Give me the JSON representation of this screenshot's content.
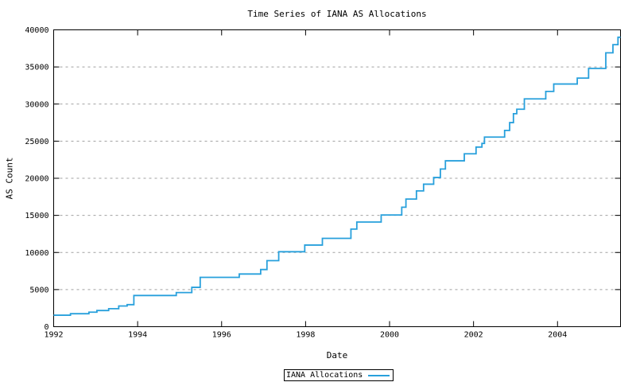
{
  "title": "Time Series of IANA AS Allocations",
  "colors": {
    "line": "#28a0dc",
    "grid": "#a0a0a0",
    "axis": "#000000",
    "background": "#ffffff",
    "text": "#000000"
  },
  "legend": {
    "label": "IANA Allocations"
  },
  "chart_data": {
    "type": "line",
    "line_style": "step-after",
    "title": "Time Series of IANA AS Allocations",
    "xlabel": "Date",
    "ylabel": "AS Count",
    "xlim": [
      1992,
      2005.5
    ],
    "ylim": [
      0,
      40000
    ],
    "x_ticks": [
      1992,
      1994,
      1996,
      1998,
      2000,
      2002,
      2004
    ],
    "y_ticks": [
      0,
      5000,
      10000,
      15000,
      20000,
      25000,
      30000,
      35000,
      40000
    ],
    "grid": "horizontal-dashed",
    "legend_position": "bottom-center",
    "series": [
      {
        "name": "IANA Allocations",
        "color": "#28a0dc",
        "points": [
          [
            1992.0,
            1550
          ],
          [
            1992.4,
            1750
          ],
          [
            1992.84,
            1960
          ],
          [
            1993.03,
            2180
          ],
          [
            1993.31,
            2430
          ],
          [
            1993.55,
            2790
          ],
          [
            1993.75,
            2970
          ],
          [
            1993.91,
            4200
          ],
          [
            1994.92,
            4600
          ],
          [
            1995.29,
            5300
          ],
          [
            1995.49,
            6650
          ],
          [
            1996.42,
            7100
          ],
          [
            1996.93,
            7700
          ],
          [
            1997.08,
            8900
          ],
          [
            1997.36,
            10100
          ],
          [
            1997.98,
            11000
          ],
          [
            1998.4,
            11900
          ],
          [
            1999.08,
            13150
          ],
          [
            1999.22,
            14100
          ],
          [
            1999.8,
            15050
          ],
          [
            2000.29,
            16100
          ],
          [
            2000.39,
            17200
          ],
          [
            2000.64,
            18300
          ],
          [
            2000.81,
            19200
          ],
          [
            2001.05,
            20100
          ],
          [
            2001.21,
            21250
          ],
          [
            2001.33,
            22350
          ],
          [
            2001.78,
            23300
          ],
          [
            2002.06,
            24200
          ],
          [
            2002.2,
            24700
          ],
          [
            2002.26,
            25550
          ],
          [
            2002.74,
            26450
          ],
          [
            2002.86,
            27500
          ],
          [
            2002.95,
            28700
          ],
          [
            2003.03,
            29300
          ],
          [
            2003.21,
            30700
          ],
          [
            2003.72,
            31700
          ],
          [
            2003.91,
            32700
          ],
          [
            2004.47,
            33500
          ],
          [
            2004.74,
            34800
          ],
          [
            2005.15,
            36900
          ],
          [
            2005.32,
            38000
          ],
          [
            2005.44,
            39000
          ]
        ]
      }
    ]
  }
}
